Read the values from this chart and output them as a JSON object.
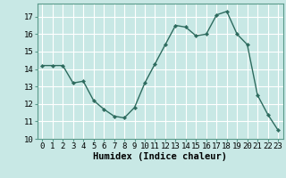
{
  "x": [
    0,
    1,
    2,
    3,
    4,
    5,
    6,
    7,
    8,
    9,
    10,
    11,
    12,
    13,
    14,
    15,
    16,
    17,
    18,
    19,
    20,
    21,
    22,
    23
  ],
  "y": [
    14.2,
    14.2,
    14.2,
    13.2,
    13.3,
    12.2,
    11.7,
    11.3,
    11.2,
    11.8,
    13.2,
    14.3,
    15.4,
    16.5,
    16.4,
    15.9,
    16.0,
    17.1,
    17.3,
    16.0,
    15.4,
    12.5,
    11.4,
    10.5
  ],
  "line_color": "#2d6b5e",
  "marker": "D",
  "marker_size": 2.2,
  "bg_color": "#c8e8e5",
  "grid_color": "#ffffff",
  "xlabel": "Humidex (Indice chaleur)",
  "xlim": [
    -0.5,
    23.5
  ],
  "ylim": [
    10,
    17.75
  ],
  "yticks": [
    10,
    11,
    12,
    13,
    14,
    15,
    16,
    17
  ],
  "xticks": [
    0,
    1,
    2,
    3,
    4,
    5,
    6,
    7,
    8,
    9,
    10,
    11,
    12,
    13,
    14,
    15,
    16,
    17,
    18,
    19,
    20,
    21,
    22,
    23
  ],
  "tick_fontsize": 6.5,
  "xlabel_fontsize": 7.5
}
